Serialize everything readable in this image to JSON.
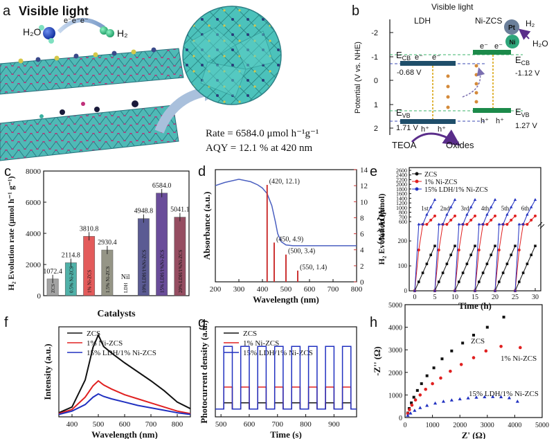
{
  "panel_labels": [
    "a",
    "b",
    "c",
    "d",
    "e",
    "f",
    "g",
    "h"
  ],
  "panel_a": {
    "title": "Visible light",
    "reactant": "H₂O",
    "product": "H₂",
    "electrons": "e⁻e⁻e⁻",
    "rate": "Rate = 6584.0 μmol h⁻¹g⁻¹",
    "aqy": "AQY = 12.1 % at 420 nm"
  },
  "panel_b": {
    "title": "Visible light",
    "ylabel": "Potential (V vs. NHE)",
    "yticks": [
      "-2",
      "-1",
      "0",
      "1",
      "2"
    ],
    "ldh": "LDH",
    "nizcs": "Ni-ZCS",
    "ecb1": "E",
    "ecb1_sub": "CB",
    "ecb1_val": "-0.68 V",
    "evb1": "E",
    "evb1_sub": "VB",
    "evb1_val": "1.71 V",
    "ecb2": "E",
    "ecb2_sub": "CB",
    "ecb2_val": "-1.12 V",
    "evb2": "E",
    "evb2_sub": "VB",
    "evb2_val": "1.27 V",
    "electron": "e⁻",
    "hole": "h⁺",
    "pt": "Pt",
    "ni": "Ni",
    "h2": "H₂",
    "h2o": "H₂O",
    "teoa": "TEOA",
    "oxides": "Oxides"
  },
  "chart_data": [
    {
      "id": "c",
      "type": "bar",
      "ylabel": "H₂ Evolution rate (μmol h⁻¹ g⁻¹)",
      "xlabel": "Catalysts",
      "ylim": [
        0,
        8000
      ],
      "yticks": [
        "0",
        "2000",
        "4000",
        "6000",
        "8000"
      ],
      "categories": [
        "ZCS",
        "0.5% Ni-ZCS",
        "1% Ni-ZCS",
        "1.5% Ni-ZCS",
        "LDH",
        "10% LDH/1%Ni-ZCS",
        "15% LDH/1%Ni-ZCS",
        "20% LDH/1%Ni-ZCS"
      ],
      "values": [
        1072.4,
        2114.8,
        3810.8,
        2930.4,
        0,
        4948.8,
        6584.0,
        5041.1
      ],
      "labels": [
        "1072.4",
        "2114.8",
        "3810.8",
        "2930.4",
        "Nil",
        "4948.8",
        "6584.0",
        "5041.1"
      ],
      "colors": [
        "#9a9a9a",
        "#3ea99f",
        "#e04a4a",
        "#8a8a7a",
        "#cccccc",
        "#4a4a88",
        "#5a3a90",
        "#8a3a50"
      ]
    },
    {
      "id": "d",
      "type": "line",
      "xlabel": "Wavelength (nm)",
      "ylabel_left": "Absorbance (a.u.)",
      "ylabel_right": "AQY (%)",
      "xlim": [
        200,
        800
      ],
      "xticks": [
        "200",
        "300",
        "400",
        "500",
        "600",
        "700",
        "800"
      ],
      "ylim_right": [
        0,
        14
      ],
      "yticks_right": [
        "0",
        "2",
        "4",
        "6",
        "8",
        "10",
        "12",
        "14"
      ],
      "absorbance": {
        "x": [
          200,
          240,
          300,
          350,
          380,
          400,
          420,
          440,
          455,
          465,
          480,
          500,
          530,
          600,
          700,
          800
        ],
        "y": [
          12.0,
          12.4,
          12.8,
          12.5,
          12.1,
          11.7,
          11.0,
          9.5,
          7.5,
          6.0,
          5.0,
          4.6,
          4.5,
          4.5,
          4.5,
          4.5
        ]
      },
      "aqy": {
        "x": [
          420,
          450,
          500,
          550
        ],
        "y": [
          12.1,
          4.9,
          3.4,
          1.4
        ]
      },
      "aqy_labels": [
        "(420, 12.1)",
        "(450, 4.9)",
        "(500, 3.4)",
        "(550, 1.4)"
      ]
    },
    {
      "id": "e",
      "type": "line",
      "xlabel": "Time (h)",
      "ylabel": "H₂ Evolution (μmol)",
      "xlim": [
        0,
        30
      ],
      "xticks": [
        "0",
        "5",
        "10",
        "15",
        "20",
        "25",
        "30"
      ],
      "yticks_low": [
        "0",
        "100",
        "200"
      ],
      "yticks_high": [
        "600",
        "700",
        "800",
        "1000",
        "1200",
        "1400",
        "1600",
        "1800",
        "2000",
        "2200",
        "2400",
        "2600"
      ],
      "legend": [
        "ZCS",
        "1% Ni-ZCS",
        "15% LDH/1% Ni-ZCS"
      ],
      "cycles": [
        "1st",
        "2nd",
        "3rd",
        "4th",
        "5th",
        "6th"
      ],
      "series": [
        {
          "name": "ZCS",
          "color": "#111111",
          "per_cycle_end": 180
        },
        {
          "name": "1% Ni-ZCS",
          "color": "#e02020",
          "per_cycle_end": 820
        },
        {
          "name": "15% LDH/1% Ni-ZCS",
          "color": "#2030c0",
          "per_cycle_end": 1450
        }
      ]
    },
    {
      "id": "f",
      "type": "line",
      "xlabel": "Wavelength (nm)",
      "ylabel": "Intensity (a.u.)",
      "xlim": [
        350,
        850
      ],
      "xticks": [
        "400",
        "500",
        "600",
        "700",
        "800"
      ],
      "legend": [
        "ZCS",
        "1% Ni-ZCS",
        "15% LDH/1% Ni-ZCS"
      ],
      "series": [
        {
          "name": "ZCS",
          "color": "#111111",
          "x": [
            350,
            400,
            450,
            480,
            500,
            510,
            520,
            550,
            600,
            650,
            700,
            750,
            800,
            850
          ],
          "y": [
            0.05,
            0.12,
            0.45,
            0.85,
            1.0,
            0.93,
            0.86,
            0.78,
            0.66,
            0.55,
            0.44,
            0.32,
            0.18,
            0.1
          ]
        },
        {
          "name": "1% Ni-ZCS",
          "color": "#e02020",
          "x": [
            350,
            400,
            450,
            480,
            500,
            520,
            550,
            600,
            650,
            700,
            750,
            800,
            850
          ],
          "y": [
            0.04,
            0.09,
            0.24,
            0.38,
            0.44,
            0.39,
            0.34,
            0.27,
            0.22,
            0.17,
            0.12,
            0.07,
            0.04
          ]
        },
        {
          "name": "15% LDH/1% Ni-ZCS",
          "color": "#2030c0",
          "x": [
            350,
            400,
            450,
            480,
            500,
            520,
            550,
            600,
            650,
            700,
            750,
            800,
            850
          ],
          "y": [
            0.03,
            0.07,
            0.15,
            0.24,
            0.28,
            0.25,
            0.22,
            0.18,
            0.14,
            0.11,
            0.08,
            0.05,
            0.03
          ]
        }
      ]
    },
    {
      "id": "g",
      "type": "line",
      "xlabel": "Time (s)",
      "ylabel": "Photocurrent density (a.u.)",
      "xlim": [
        480,
        980
      ],
      "xticks": [
        "500",
        "600",
        "700",
        "800",
        "900"
      ],
      "legend": [
        "ZCS",
        "1% Ni-ZCS",
        "15% LDH/1% Ni-ZCS"
      ],
      "on_off_period_s": 60,
      "series": [
        {
          "name": "ZCS",
          "color": "#111111",
          "off": 0.1,
          "on": 0.18
        },
        {
          "name": "1% Ni-ZCS",
          "color": "#e02020",
          "off": 0.1,
          "on": 0.38
        },
        {
          "name": "15% LDH/1% Ni-ZCS",
          "color": "#2030c0",
          "off": 0.1,
          "on": 0.9
        }
      ]
    },
    {
      "id": "h",
      "type": "scatter",
      "xlabel": "Z' (Ω)",
      "ylabel": "-Z'' (Ω)",
      "xlim": [
        0,
        5000
      ],
      "ylim": [
        0,
        5000
      ],
      "xticks": [
        "0",
        "1000",
        "2000",
        "3000",
        "4000",
        "5000"
      ],
      "yticks": [
        "0",
        "1000",
        "2000",
        "3000",
        "4000",
        "5000"
      ],
      "series": [
        {
          "name": "ZCS",
          "color": "#111111",
          "marker": "square",
          "x": [
            100,
            150,
            230,
            320,
            450,
            600,
            800,
            1050,
            1350,
            1700,
            2100,
            2500,
            3000,
            3600
          ],
          "y": [
            200,
            400,
            650,
            900,
            1200,
            1500,
            1850,
            2200,
            2600,
            2950,
            3300,
            3650,
            4000,
            4450
          ]
        },
        {
          "name": "1% Ni-ZCS",
          "color": "#e02020",
          "marker": "circle",
          "x": [
            100,
            160,
            250,
            380,
            550,
            750,
            1000,
            1300,
            1650,
            2050,
            2500,
            2950,
            3500,
            4200
          ],
          "y": [
            180,
            350,
            550,
            780,
            1000,
            1250,
            1500,
            1750,
            2050,
            2350,
            2650,
            2950,
            3150,
            3100
          ]
        },
        {
          "name": "15% LDH/1% Ni-ZCS",
          "color": "#2030c0",
          "marker": "triangle",
          "x": [
            100,
            200,
            350,
            550,
            800,
            1100,
            1400,
            1700,
            2000,
            2300,
            2600,
            2900,
            3200,
            3500,
            3800,
            4100
          ],
          "y": [
            80,
            180,
            300,
            420,
            520,
            620,
            700,
            760,
            810,
            850,
            880,
            900,
            910,
            900,
            860,
            700
          ]
        }
      ]
    }
  ]
}
